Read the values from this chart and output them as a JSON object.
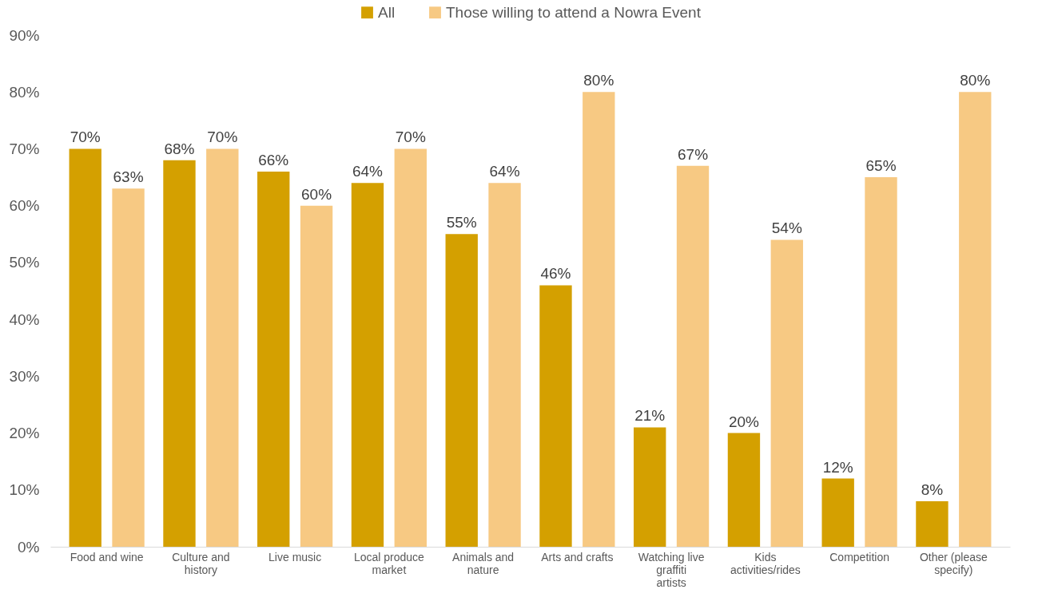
{
  "chart_data": {
    "type": "bar",
    "categories": [
      "Food and wine",
      "Culture and history",
      "Live music",
      "Local produce market",
      "Animals and nature",
      "Arts and crafts",
      "Watching live graffiti artists",
      "Kids activities/rides",
      "Competition",
      "Other (please specify)"
    ],
    "series": [
      {
        "name": "All",
        "color": "#d4a000",
        "values": [
          70,
          68,
          66,
          64,
          55,
          46,
          21,
          20,
          12,
          8
        ],
        "value_labels": [
          "70%",
          "68%",
          "66%",
          "64%",
          "55%",
          "46%",
          "21%",
          "20%",
          "12%",
          "8%"
        ]
      },
      {
        "name": "Those willing to attend a Nowra Event",
        "color": "#f7c983",
        "values": [
          63,
          70,
          60,
          70,
          64,
          80,
          67,
          54,
          65,
          80
        ],
        "value_labels": [
          "63%",
          "70%",
          "60%",
          "70%",
          "64%",
          "80%",
          "67%",
          "54%",
          "65%",
          "80%"
        ]
      }
    ],
    "ylim": [
      0,
      90
    ],
    "yticks": [
      {
        "value": 0,
        "label": "0%"
      },
      {
        "value": 10,
        "label": "10%"
      },
      {
        "value": 20,
        "label": "20%"
      },
      {
        "value": 30,
        "label": "30%"
      },
      {
        "value": 40,
        "label": "40%"
      },
      {
        "value": 50,
        "label": "50%"
      },
      {
        "value": 60,
        "label": "60%"
      },
      {
        "value": 70,
        "label": "70%"
      },
      {
        "value": 80,
        "label": "80%"
      },
      {
        "value": 90,
        "label": "90%"
      }
    ],
    "legend": "top"
  }
}
